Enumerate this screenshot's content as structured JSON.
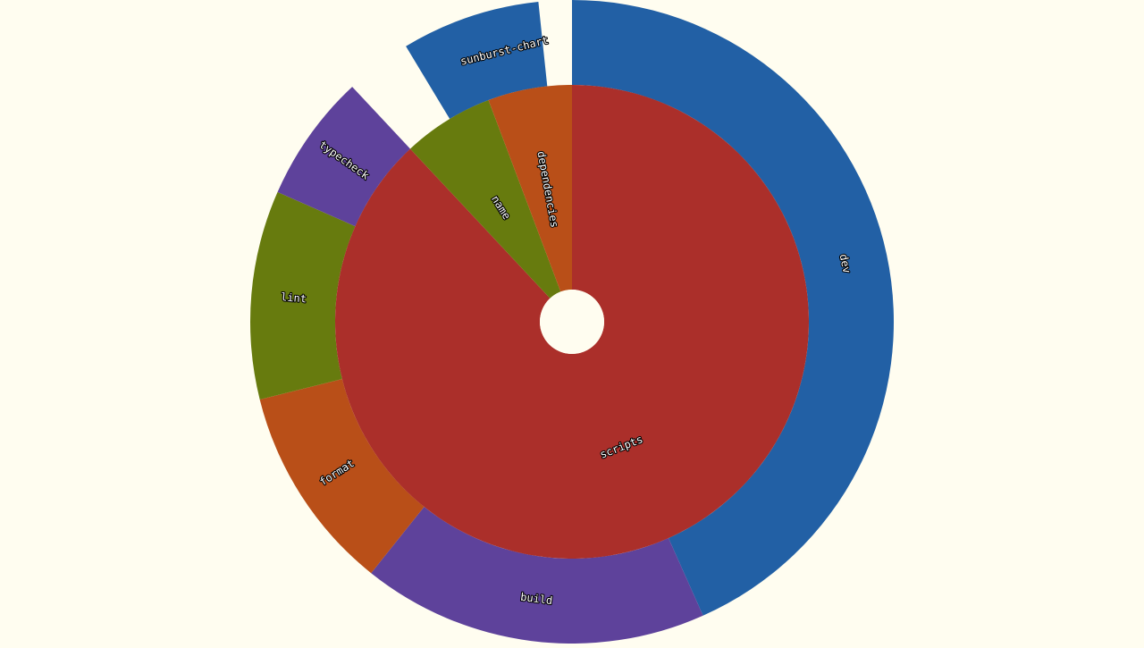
{
  "chart_data": {
    "type": "sunburst",
    "root": "sunburst-chart",
    "background": "#fffdf0",
    "palette": {
      "red": "#ab2f2a",
      "orange": "#b94f18",
      "olive": "#677b0e",
      "purple": "#5e429b",
      "blue": "#2260a5",
      "center": "#fffdf0"
    },
    "nodes": [
      {
        "name": "sunburst-chart",
        "color": "#2260a5",
        "children": [
          {
            "name": "scripts",
            "color": "#ab2f2a",
            "children": [
              {
                "name": "dev",
                "value": 43.8,
                "color": "#2260a5"
              },
              {
                "name": "build",
                "value": 17.6,
                "color": "#5e429b"
              },
              {
                "name": "format",
                "value": 10.5,
                "color": "#b94f18"
              },
              {
                "name": "lint",
                "value": 10.6,
                "color": "#677b0e"
              },
              {
                "name": "typecheck",
                "value": 6.5,
                "color": "#5e429b"
              }
            ]
          },
          {
            "name": "name",
            "value": 6.3,
            "color": "#677b0e"
          },
          {
            "name": "dependencies",
            "value": 5.8,
            "color": "#b94f18"
          }
        ]
      }
    ]
  }
}
